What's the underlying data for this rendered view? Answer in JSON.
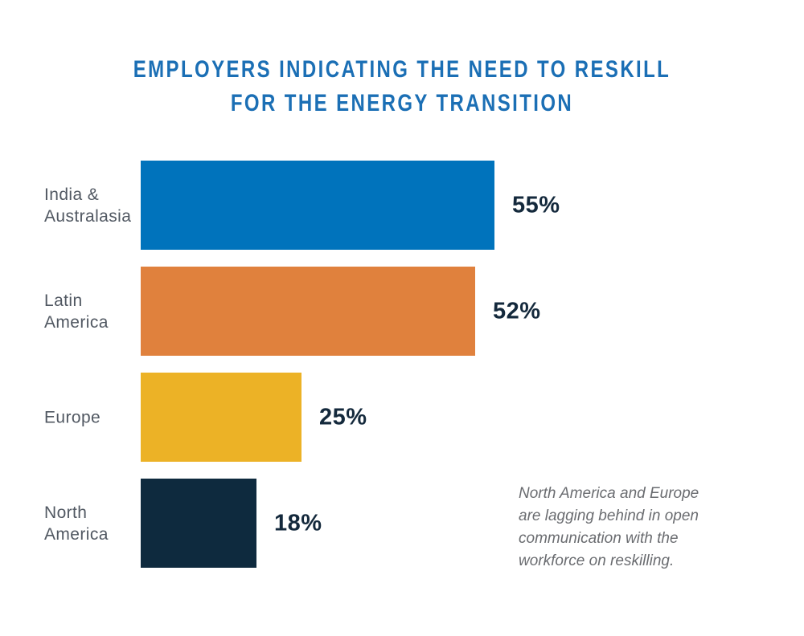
{
  "page": {
    "background": "#FFFFFF"
  },
  "title": {
    "text": "EMPLOYERS INDICATING THE NEED TO RESKILL FOR THE ENERGY TRANSITION",
    "lines": [
      "EMPLOYERS INDICATING THE NEED TO RESKILL",
      "FOR THE ENERGY TRANSITION"
    ],
    "color": "#1B6FB5"
  },
  "annotation": {
    "text": "North America and Europe are lagging behind in open communication with the workforce on reskilling.",
    "lines": [
      "North America and Europe",
      "are lagging behind in open",
      "communication with the",
      "workforce on reskilling."
    ],
    "color": "#6A6C70"
  },
  "chart_data": {
    "type": "bar",
    "orientation": "horizontal",
    "title": "EMPLOYERS INDICATING THE NEED TO RESKILL FOR THE ENERGY TRANSITION",
    "categories": [
      "India & Australasia",
      "Latin America",
      "Europe",
      "North America"
    ],
    "values": [
      55,
      52,
      25,
      18
    ],
    "unit": "%",
    "xlim": [
      0,
      55
    ],
    "grid": false,
    "legend": false,
    "value_label_color": "#14293C",
    "category_label_color": "#515862",
    "rows": [
      {
        "category": "India & Australasia",
        "label_lines": [
          "India &",
          "Australasia"
        ],
        "value": 55,
        "value_label": "55%",
        "color": "#0073BC"
      },
      {
        "category": "Latin America",
        "label_lines": [
          "Latin",
          "America"
        ],
        "value": 52,
        "value_label": "52%",
        "color": "#E0813D"
      },
      {
        "category": "Europe",
        "label_lines": [
          "Europe"
        ],
        "value": 25,
        "value_label": "25%",
        "color": "#ECB226"
      },
      {
        "category": "North America",
        "label_lines": [
          "North",
          "America"
        ],
        "value": 18,
        "value_label": "18%",
        "color": "#0E2A3E"
      }
    ]
  }
}
